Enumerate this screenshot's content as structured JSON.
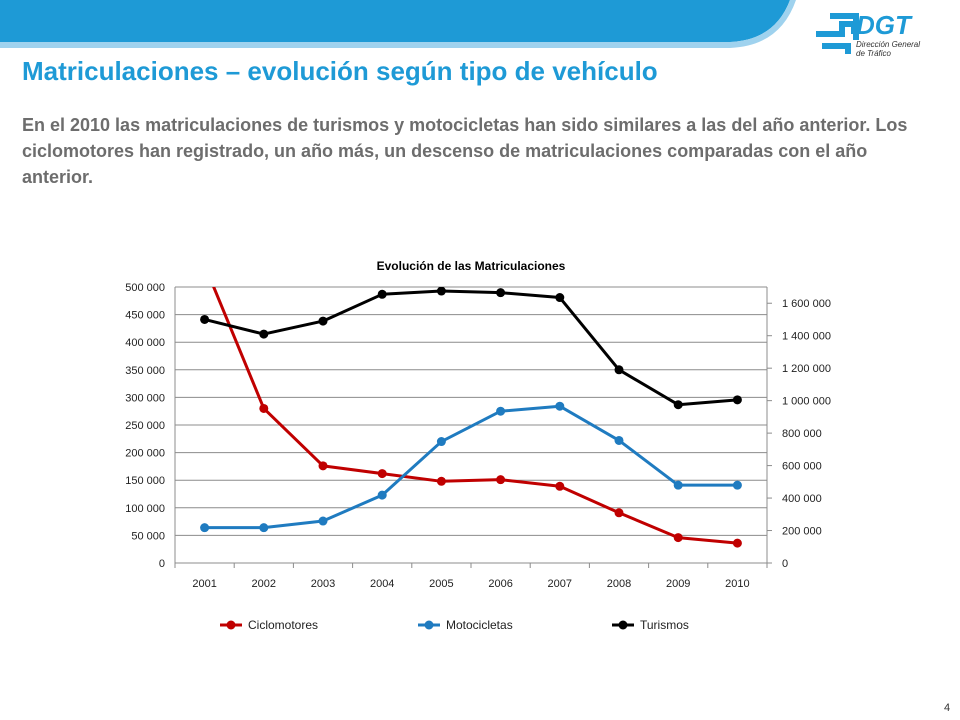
{
  "header": {
    "title": "Matriculaciones – evolución según tipo de vehículo",
    "subtitle": "En el 2010 las matriculaciones de turismos y motocicletas han sido similares a las del año anterior. Los ciclomotores han registrado, un año más, un descenso de matriculaciones comparadas con el año anterior.",
    "accent_color": "#1e9ad6",
    "logo_text": "DGT",
    "logo_subtext_1": "Dirección General",
    "logo_subtext_2": "de Tráfico"
  },
  "page_number": "4",
  "chart_data": {
    "type": "line",
    "title": "Evolución de las  Matriculaciones",
    "categories": [
      "2001",
      "2002",
      "2003",
      "2004",
      "2005",
      "2006",
      "2007",
      "2008",
      "2009",
      "2010"
    ],
    "y_left": {
      "min": 0,
      "max": 500000,
      "step": 50000,
      "tick_labels": [
        "0",
        "50 000",
        "100 000",
        "150 000",
        "200 000",
        "250 000",
        "300 000",
        "350 000",
        "400 000",
        "450 000",
        "500 000"
      ]
    },
    "y_right": {
      "min": 0,
      "max": 1700000,
      "step": 200000,
      "tick_labels": [
        "0",
        "200 000",
        "400 000",
        "600 000",
        "800 000",
        "1 000 000",
        "1 200 000",
        "1 400 000",
        "1 600 000"
      ]
    },
    "grid": true,
    "legend_position": "bottom",
    "series": [
      {
        "name": "Ciclomotores",
        "axis": "left",
        "color": "#c00000",
        "values": [
          540000,
          280000,
          176000,
          162000,
          148000,
          151000,
          139000,
          91000,
          46000,
          36000
        ]
      },
      {
        "name": "Motocicletas",
        "axis": "left",
        "color": "#1f7bc0",
        "values": [
          64000,
          64000,
          76000,
          123000,
          220000,
          275000,
          284000,
          222000,
          141000,
          141000
        ]
      },
      {
        "name": "Turismos",
        "axis": "right",
        "color": "#000000",
        "values": [
          1500000,
          1410000,
          1490000,
          1655000,
          1675000,
          1665000,
          1635000,
          1190000,
          975000,
          1005000
        ]
      }
    ]
  }
}
